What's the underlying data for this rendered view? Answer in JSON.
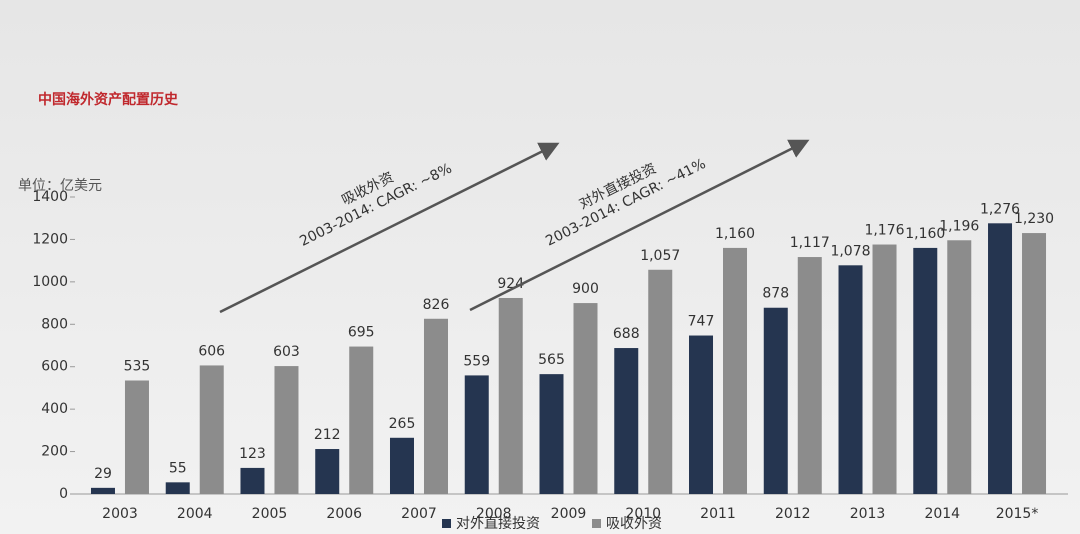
{
  "chart_data": {
    "type": "bar",
    "title": "中国海外资产配置历史",
    "y_label": "单位：亿美元",
    "categories": [
      "2003",
      "2004",
      "2005",
      "2006",
      "2007",
      "2008",
      "2009",
      "2010",
      "2011",
      "2012",
      "2013",
      "2014",
      "2015*"
    ],
    "series": [
      {
        "name": "对外直接投资",
        "color": "#253550",
        "values": [
          29,
          55,
          123,
          212,
          265,
          559,
          565,
          688,
          747,
          878,
          1078,
          1160,
          1276
        ],
        "value_labels": [
          "29",
          "55",
          "123",
          "212",
          "265",
          "559",
          "565",
          "688",
          "747",
          "878",
          "1,078",
          "1,160",
          "1,276"
        ]
      },
      {
        "name": "吸收外资",
        "color": "#8c8c8c",
        "values": [
          535,
          606,
          603,
          695,
          826,
          924,
          900,
          1057,
          1160,
          1117,
          1176,
          1196,
          1230
        ],
        "value_labels": [
          "535",
          "606",
          "603",
          "695",
          "826",
          "924",
          "900",
          "1,057",
          "1,160",
          "1,117",
          "1,176",
          "1,196",
          "1,230"
        ]
      }
    ],
    "ylim": [
      0,
      1400
    ],
    "yticks": [
      0,
      200,
      400,
      600,
      800,
      1000,
      1200,
      1400
    ],
    "annotations": [
      "吸收外资",
      "2003-2014: CAGR: ~8%",
      "对外直接投资",
      "2003-2014: CAGR: ~41%"
    ]
  }
}
